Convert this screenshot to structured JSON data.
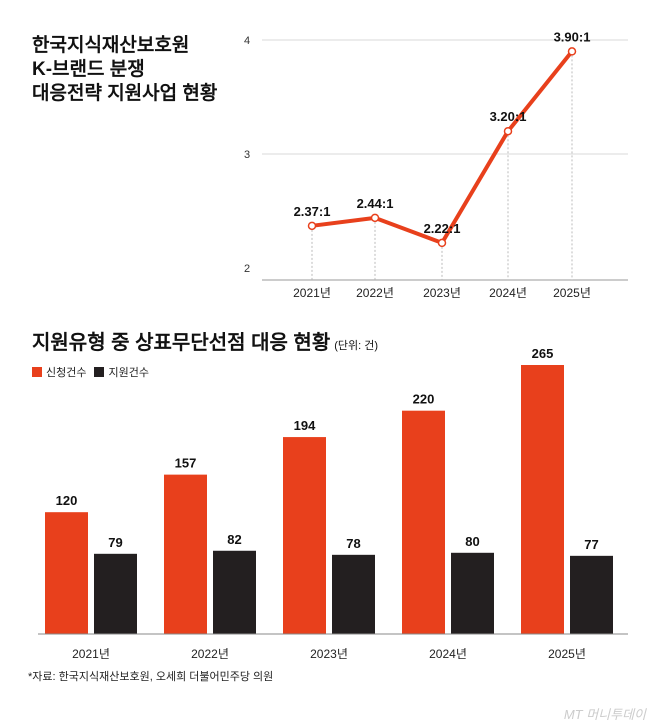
{
  "chart_data": [
    {
      "type": "line",
      "title": "한국지식재산보호원 K-브랜드 분쟁 대응전략 지원사업 현황",
      "title_lines": [
        "한국지식재산보호원",
        "K-브랜드 분쟁",
        "대응전략 지원사업 현황"
      ],
      "categories": [
        "2021년",
        "2022년",
        "2023년",
        "2024년",
        "2025년"
      ],
      "values": [
        2.37,
        2.44,
        2.22,
        3.2,
        3.9
      ],
      "data_labels": [
        "2.37:1",
        "2.44:1",
        "2.22:1",
        "3.20:1",
        "3.90:1"
      ],
      "ylim": [
        2,
        4
      ],
      "yticks": [
        "2",
        "3",
        "4"
      ],
      "grid": true,
      "color": "#e8401c"
    },
    {
      "type": "bar",
      "title": "지원유형 중 상표무단선점 대응 현황",
      "unit": "(단위: 건)",
      "categories": [
        "2021년",
        "2022년",
        "2023년",
        "2024년",
        "2025년"
      ],
      "series": [
        {
          "name": "신청건수",
          "values": [
            120,
            157,
            194,
            220,
            265
          ],
          "color": "#e8401c"
        },
        {
          "name": "지원건수",
          "values": [
            79,
            82,
            78,
            80,
            77
          ],
          "color": "#231f20"
        }
      ],
      "legend": "top-left"
    }
  ],
  "source": "*자료: 한국지식재산보호원, 오세희 더불어민주당 의원",
  "logo": "MT 머니투데이"
}
